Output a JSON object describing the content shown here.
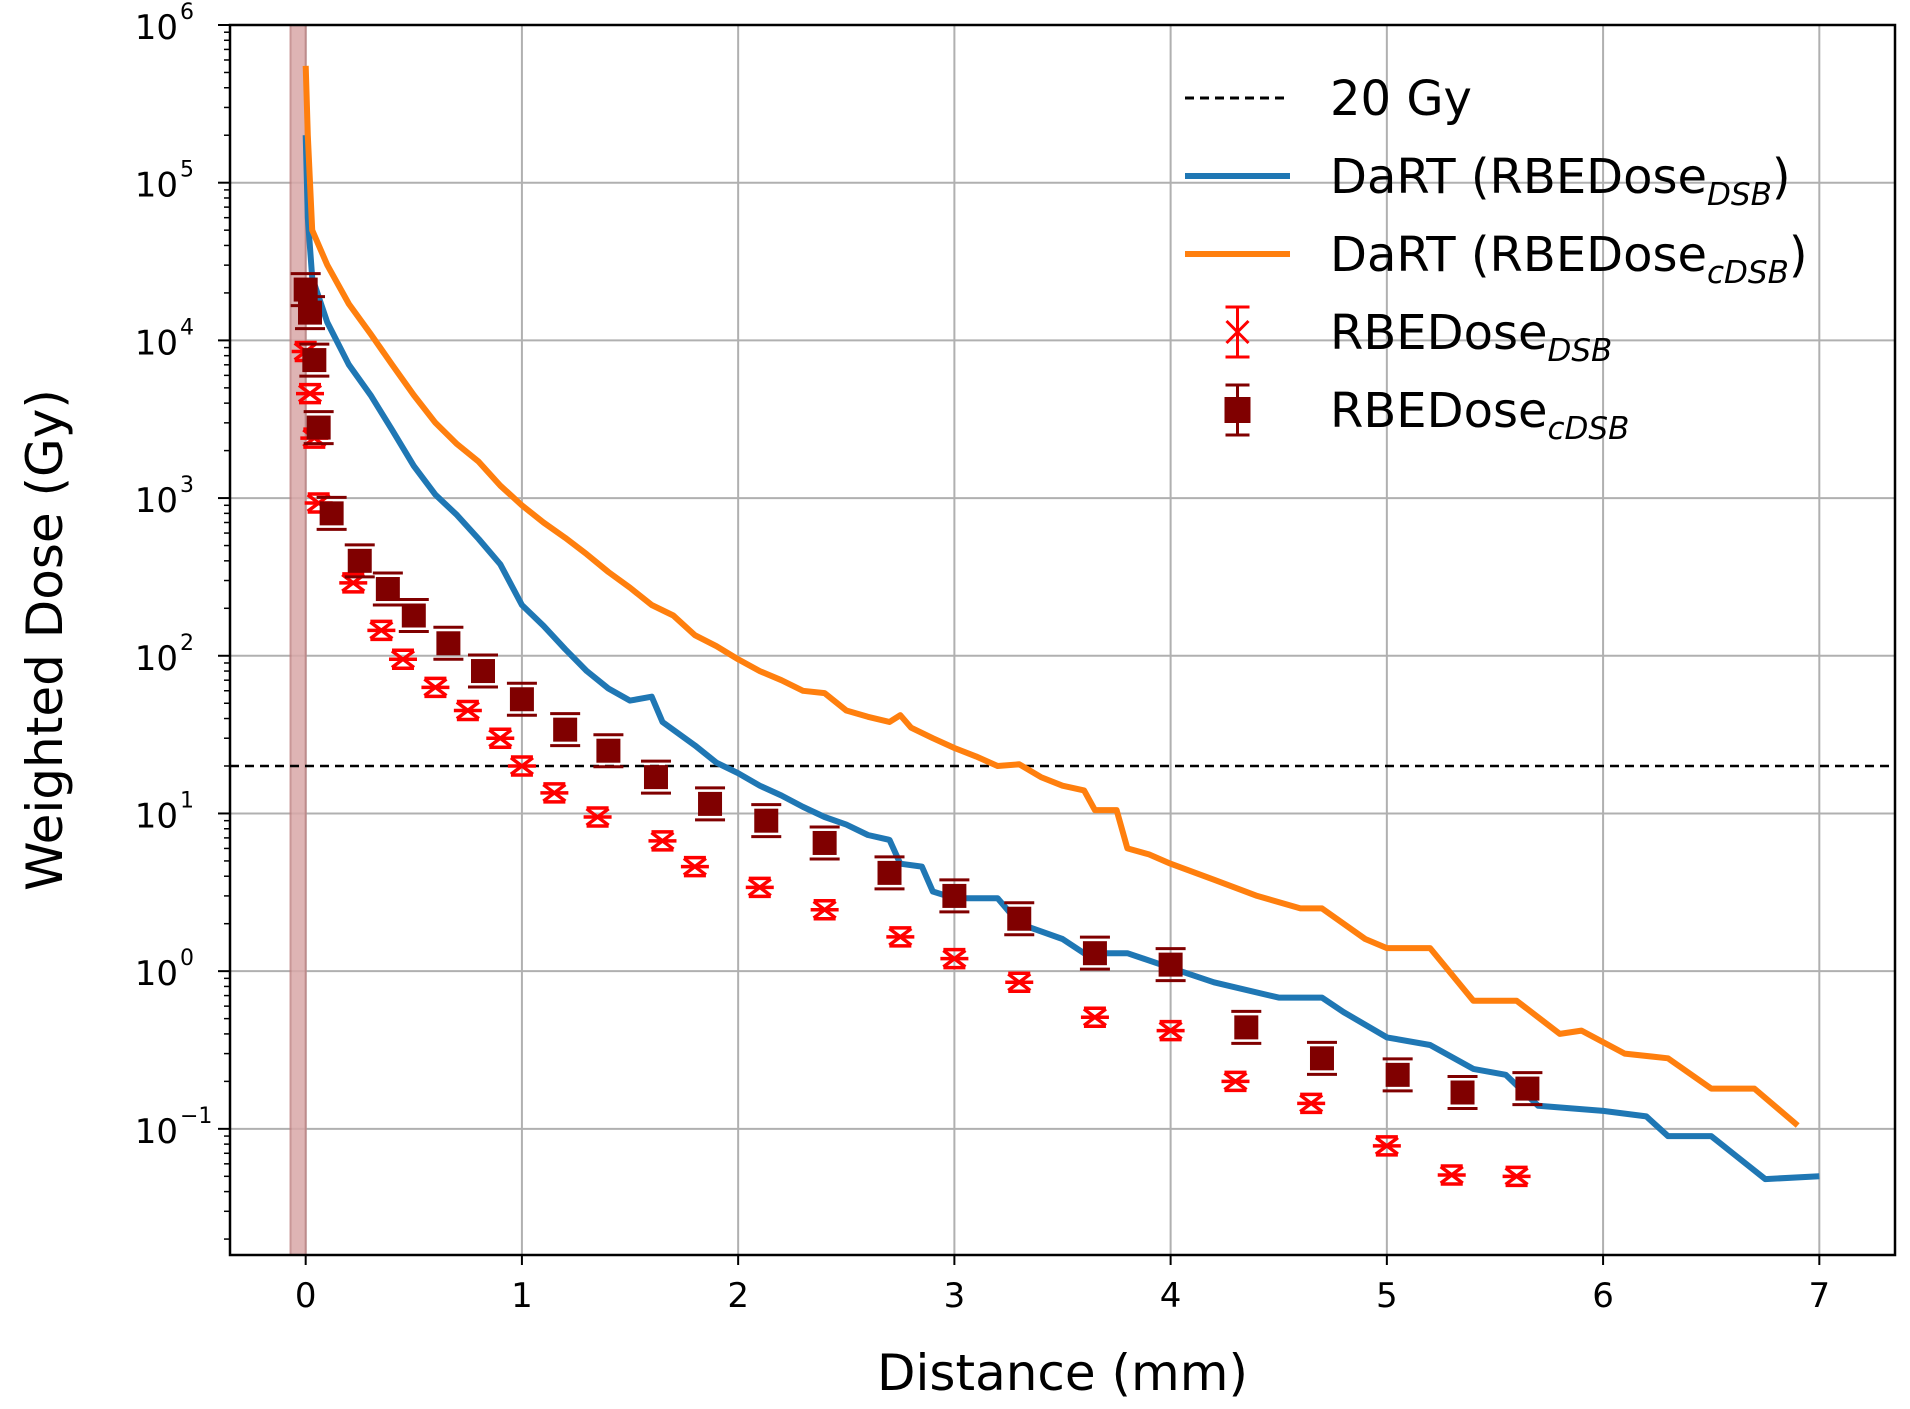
{
  "chart_data": {
    "type": "line",
    "title": "",
    "xlabel": "Distance (mm)",
    "ylabel": "Weighted Dose (Gy)",
    "xlim": [
      -0.35,
      7.35
    ],
    "ylim_log10": [
      -1.8,
      6.0
    ],
    "yscale": "log",
    "grid": true,
    "x_ticks": [
      0,
      1,
      2,
      3,
      4,
      5,
      6,
      7
    ],
    "x_tick_labels": [
      "0",
      "1",
      "2",
      "3",
      "4",
      "5",
      "6",
      "7"
    ],
    "y_ticks": [
      -1,
      0,
      1,
      2,
      3,
      4,
      5,
      6
    ],
    "y_tick_base": "10",
    "y_tick_exponents": [
      "−1",
      "0",
      "1",
      "2",
      "3",
      "4",
      "5",
      "6"
    ],
    "shaded_band": {
      "x_from": -0.07,
      "x_to": 0.0,
      "color": "#d9a8a8"
    },
    "reference_line": {
      "y": 20,
      "label": "20 Gy",
      "style": "dashed",
      "color": "#000000"
    },
    "legend": {
      "placement": "top-right",
      "entries": [
        {
          "main": "20 Gy",
          "sub": "",
          "after": "",
          "style": "dashed"
        },
        {
          "main": "DaRT (RBEDose",
          "sub": "DSB",
          "after": ")",
          "color": "#1f77b4"
        },
        {
          "main": "DaRT (RBEDose",
          "sub": "cDSB",
          "after": ")",
          "color": "#ff7f0e"
        },
        {
          "main": "RBEDose",
          "sub": "DSB",
          "after": "",
          "color": "#ff0000"
        },
        {
          "main": "RBEDose",
          "sub": "cDSB",
          "after": "",
          "color": "#800000"
        }
      ]
    },
    "series": [
      {
        "name": "DaRT (RBEDose_DSB)",
        "kind": "line",
        "color": "#1f77b4",
        "points": [
          [
            0.0,
            200000
          ],
          [
            0.01,
            60000
          ],
          [
            0.03,
            25000
          ],
          [
            0.1,
            13000
          ],
          [
            0.2,
            7000
          ],
          [
            0.3,
            4500
          ],
          [
            0.4,
            2700
          ],
          [
            0.5,
            1600
          ],
          [
            0.6,
            1050
          ],
          [
            0.7,
            780
          ],
          [
            0.8,
            550
          ],
          [
            0.9,
            380
          ],
          [
            1.0,
            210
          ],
          [
            1.1,
            155
          ],
          [
            1.2,
            110
          ],
          [
            1.3,
            80
          ],
          [
            1.4,
            62
          ],
          [
            1.5,
            52
          ],
          [
            1.6,
            55
          ],
          [
            1.65,
            38
          ],
          [
            1.8,
            27
          ],
          [
            1.9,
            21
          ],
          [
            2.0,
            18
          ],
          [
            2.1,
            15
          ],
          [
            2.2,
            13
          ],
          [
            2.3,
            11
          ],
          [
            2.4,
            9.5
          ],
          [
            2.5,
            8.5
          ],
          [
            2.6,
            7.3
          ],
          [
            2.7,
            6.8
          ],
          [
            2.75,
            4.8
          ],
          [
            2.85,
            4.6
          ],
          [
            2.9,
            3.2
          ],
          [
            3.0,
            2.9
          ],
          [
            3.2,
            2.9
          ],
          [
            3.3,
            2.0
          ],
          [
            3.5,
            1.6
          ],
          [
            3.6,
            1.3
          ],
          [
            3.8,
            1.3
          ],
          [
            4.0,
            1.05
          ],
          [
            4.2,
            0.85
          ],
          [
            4.5,
            0.68
          ],
          [
            4.7,
            0.68
          ],
          [
            4.8,
            0.55
          ],
          [
            5.0,
            0.38
          ],
          [
            5.2,
            0.34
          ],
          [
            5.4,
            0.24
          ],
          [
            5.55,
            0.22
          ],
          [
            5.7,
            0.14
          ],
          [
            6.0,
            0.13
          ],
          [
            6.2,
            0.12
          ],
          [
            6.3,
            0.09
          ],
          [
            6.5,
            0.09
          ],
          [
            6.6,
            0.07
          ],
          [
            6.75,
            0.048
          ],
          [
            7.0,
            0.05
          ]
        ]
      },
      {
        "name": "DaRT (RBEDose_cDSB)",
        "kind": "line",
        "color": "#ff7f0e",
        "points": [
          [
            0.0,
            550000
          ],
          [
            0.01,
            200000
          ],
          [
            0.03,
            50000
          ],
          [
            0.1,
            30000
          ],
          [
            0.2,
            17000
          ],
          [
            0.3,
            11000
          ],
          [
            0.4,
            7000
          ],
          [
            0.5,
            4500
          ],
          [
            0.6,
            3000
          ],
          [
            0.7,
            2200
          ],
          [
            0.8,
            1700
          ],
          [
            0.9,
            1200
          ],
          [
            1.0,
            900
          ],
          [
            1.1,
            700
          ],
          [
            1.2,
            560
          ],
          [
            1.3,
            440
          ],
          [
            1.4,
            340
          ],
          [
            1.5,
            270
          ],
          [
            1.6,
            210
          ],
          [
            1.7,
            180
          ],
          [
            1.8,
            135
          ],
          [
            1.9,
            115
          ],
          [
            2.0,
            95
          ],
          [
            2.1,
            80
          ],
          [
            2.2,
            70
          ],
          [
            2.3,
            60
          ],
          [
            2.4,
            58
          ],
          [
            2.5,
            45
          ],
          [
            2.6,
            41
          ],
          [
            2.7,
            38
          ],
          [
            2.75,
            42
          ],
          [
            2.8,
            35
          ],
          [
            2.9,
            30
          ],
          [
            3.0,
            26
          ],
          [
            3.1,
            23
          ],
          [
            3.2,
            20
          ],
          [
            3.3,
            20.5
          ],
          [
            3.4,
            17
          ],
          [
            3.5,
            15
          ],
          [
            3.6,
            14
          ],
          [
            3.65,
            10.5
          ],
          [
            3.75,
            10.5
          ],
          [
            3.8,
            6
          ],
          [
            3.9,
            5.5
          ],
          [
            4.0,
            4.8
          ],
          [
            4.2,
            3.8
          ],
          [
            4.4,
            3.0
          ],
          [
            4.6,
            2.5
          ],
          [
            4.7,
            2.5
          ],
          [
            4.9,
            1.6
          ],
          [
            5.0,
            1.4
          ],
          [
            5.2,
            1.4
          ],
          [
            5.4,
            0.65
          ],
          [
            5.6,
            0.65
          ],
          [
            5.8,
            0.4
          ],
          [
            5.9,
            0.42
          ],
          [
            6.1,
            0.3
          ],
          [
            6.3,
            0.28
          ],
          [
            6.5,
            0.18
          ],
          [
            6.7,
            0.18
          ],
          [
            6.9,
            0.105
          ]
        ]
      },
      {
        "name": "RBEDose_DSB",
        "kind": "markers-x",
        "color": "#ff0000",
        "points": [
          [
            0.0,
            8500
          ],
          [
            0.02,
            4600
          ],
          [
            0.04,
            2400
          ],
          [
            0.06,
            930
          ],
          [
            0.22,
            290
          ],
          [
            0.35,
            145
          ],
          [
            0.45,
            95
          ],
          [
            0.6,
            63
          ],
          [
            0.75,
            45
          ],
          [
            0.9,
            30
          ],
          [
            1.0,
            20
          ],
          [
            1.15,
            13.5
          ],
          [
            1.35,
            9.5
          ],
          [
            1.65,
            6.7
          ],
          [
            1.8,
            4.6
          ],
          [
            2.1,
            3.4
          ],
          [
            2.4,
            2.45
          ],
          [
            2.75,
            1.65
          ],
          [
            3.0,
            1.2
          ],
          [
            3.3,
            0.85
          ],
          [
            3.65,
            0.51
          ],
          [
            4.0,
            0.42
          ],
          [
            4.3,
            0.2
          ],
          [
            4.65,
            0.145
          ],
          [
            5.0,
            0.078
          ],
          [
            5.3,
            0.051
          ],
          [
            5.6,
            0.05
          ]
        ]
      },
      {
        "name": "RBEDose_cDSB",
        "kind": "markers-square",
        "color": "#800000",
        "points": [
          [
            0.0,
            21000
          ],
          [
            0.02,
            15000
          ],
          [
            0.04,
            7500
          ],
          [
            0.06,
            2800
          ],
          [
            0.12,
            800
          ],
          [
            0.25,
            400
          ],
          [
            0.38,
            265
          ],
          [
            0.5,
            180
          ],
          [
            0.66,
            120
          ],
          [
            0.82,
            80
          ],
          [
            1.0,
            53
          ],
          [
            1.2,
            34
          ],
          [
            1.4,
            25
          ],
          [
            1.62,
            17
          ],
          [
            1.87,
            11.5
          ],
          [
            2.13,
            9.0
          ],
          [
            2.4,
            6.5
          ],
          [
            2.7,
            4.2
          ],
          [
            3.0,
            3.0
          ],
          [
            3.3,
            2.15
          ],
          [
            3.65,
            1.3
          ],
          [
            4.0,
            1.1
          ],
          [
            4.35,
            0.44
          ],
          [
            4.7,
            0.28
          ],
          [
            5.05,
            0.22
          ],
          [
            5.35,
            0.17
          ],
          [
            5.65,
            0.18
          ]
        ]
      }
    ]
  }
}
